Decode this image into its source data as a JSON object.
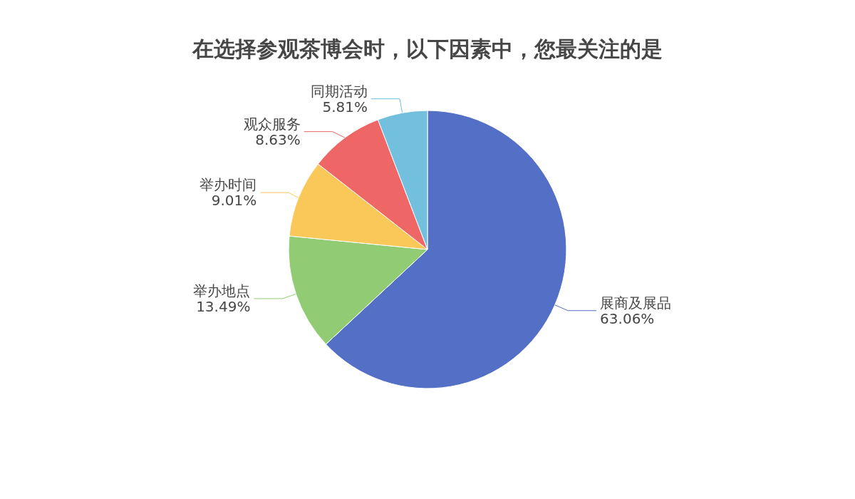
{
  "chart_data": {
    "type": "pie",
    "title": "在选择参观茶博会时，以下因素中，您最关注的是",
    "categories": [
      "展商及展品",
      "举办地点",
      "举办时间",
      "观众服务",
      "同期活动"
    ],
    "values": [
      63.06,
      13.49,
      9.01,
      8.63,
      5.81
    ],
    "value_labels": [
      "63.06%",
      "13.49%",
      "9.01%",
      "8.63%",
      "5.81%"
    ],
    "colors": [
      "#5470c6",
      "#91cc75",
      "#fac858",
      "#ee6666",
      "#73c0de"
    ],
    "legend": false
  }
}
